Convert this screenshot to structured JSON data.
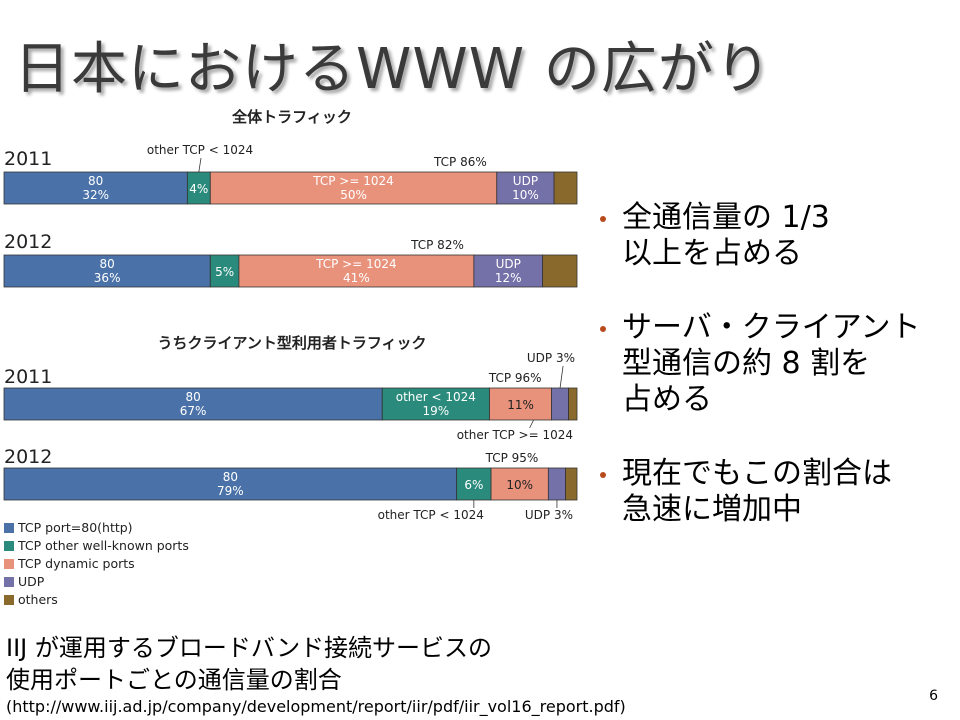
{
  "slide": {
    "title": "日本におけるWWW の広がり",
    "page_number": "6"
  },
  "bullets": [
    {
      "lines": [
        "全通信量の 1/3",
        "以上を占める"
      ]
    },
    {
      "lines": [
        "サーバ・クライアント",
        "型通信の約 8 割を",
        "占める"
      ]
    },
    {
      "lines": [
        "現在でもこの割合は",
        "急速に増加中"
      ]
    }
  ],
  "caption": {
    "line1": "IIJ が運用するブロードバンド接続サービスの",
    "line2": "使用ポートごとの通信量の割合",
    "url": "(http://www.iij.ad.jp/company/development/report/iir/pdf/iir_vol16_report.pdf)"
  },
  "chart_data": {
    "type": "bar",
    "orientation": "horizontal-stacked-100",
    "colors": {
      "http": "#4a72a8",
      "wellknown": "#2a8a7c",
      "dynamic": "#e8927c",
      "udp": "#7470a8",
      "others": "#8a6a2c"
    },
    "legend": [
      {
        "key": "http",
        "label": "TCP port=80(http)"
      },
      {
        "key": "wellknown",
        "label": "TCP other well-known ports"
      },
      {
        "key": "dynamic",
        "label": "TCP dynamic ports"
      },
      {
        "key": "udp",
        "label": "UDP"
      },
      {
        "key": "others",
        "label": "others"
      }
    ],
    "legend_placement": "bottom-left",
    "groups": [
      {
        "title": "全体トラフィック",
        "bars": [
          {
            "year": "2011",
            "segments": [
              {
                "key": "http",
                "value": 32,
                "label": [
                  "80",
                  "32%"
                ]
              },
              {
                "key": "wellknown",
                "value": 4,
                "label": [
                  "4%"
                ]
              },
              {
                "key": "dynamic",
                "value": 50,
                "label": [
                  "TCP >= 1024",
                  "50%"
                ]
              },
              {
                "key": "udp",
                "value": 10,
                "label": [
                  "UDP",
                  "10%"
                ]
              },
              {
                "key": "others",
                "value": 4,
                "label": []
              }
            ],
            "annotations": {
              "above_left": "other TCP < 1024",
              "above_right": "TCP 86%"
            }
          },
          {
            "year": "2012",
            "segments": [
              {
                "key": "http",
                "value": 36,
                "label": [
                  "80",
                  "36%"
                ]
              },
              {
                "key": "wellknown",
                "value": 5,
                "label": [
                  "5%"
                ]
              },
              {
                "key": "dynamic",
                "value": 41,
                "label": [
                  "TCP >= 1024",
                  "41%"
                ]
              },
              {
                "key": "udp",
                "value": 12,
                "label": [
                  "UDP",
                  "12%"
                ]
              },
              {
                "key": "others",
                "value": 6,
                "label": []
              }
            ],
            "annotations": {
              "above_right": "TCP 82%"
            }
          }
        ]
      },
      {
        "title": "うちクライアント型利用者トラフィック",
        "bars": [
          {
            "year": "2011",
            "segments": [
              {
                "key": "http",
                "value": 67,
                "label": [
                  "80",
                  "67%"
                ]
              },
              {
                "key": "wellknown",
                "value": 19,
                "label": [
                  "other < 1024",
                  "19%"
                ]
              },
              {
                "key": "dynamic",
                "value": 11,
                "label": [
                  "11%"
                ]
              },
              {
                "key": "udp",
                "value": 3,
                "label": []
              },
              {
                "key": "others",
                "value": 1.5,
                "label": []
              }
            ],
            "annotations": {
              "above_right": "TCP 96%",
              "above_far": "UDP 3%",
              "below_right": "other TCP >= 1024"
            }
          },
          {
            "year": "2012",
            "segments": [
              {
                "key": "http",
                "value": 79,
                "label": [
                  "80",
                  "79%"
                ]
              },
              {
                "key": "wellknown",
                "value": 6,
                "label": [
                  "6%"
                ]
              },
              {
                "key": "dynamic",
                "value": 10,
                "label": [
                  "10%"
                ]
              },
              {
                "key": "udp",
                "value": 3,
                "label": []
              },
              {
                "key": "others",
                "value": 2,
                "label": []
              }
            ],
            "annotations": {
              "above_right": "TCP 95%",
              "below_left": "other TCP < 1024",
              "below_far": "UDP 3%"
            }
          }
        ]
      }
    ]
  }
}
